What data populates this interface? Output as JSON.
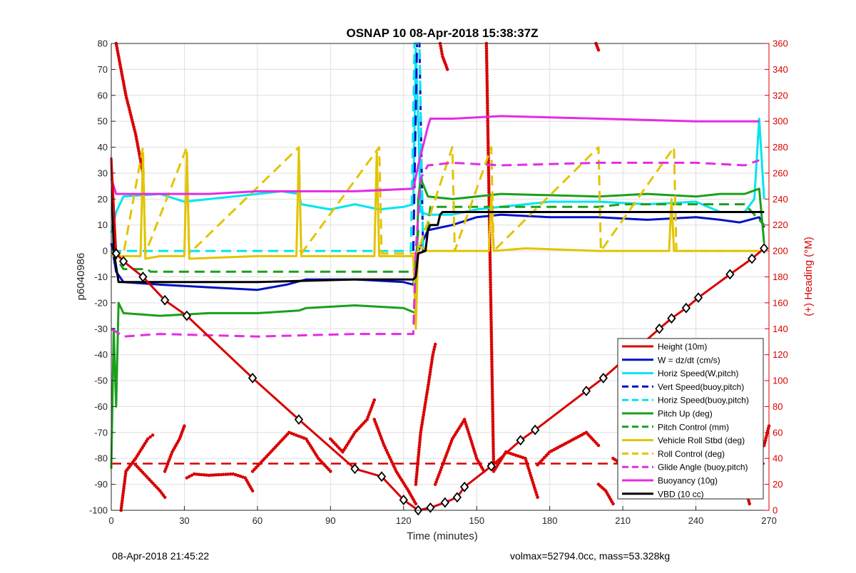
{
  "chart_data": {
    "type": "line",
    "title": "OSNAP 10 08-Apr-2018 15:38:37Z",
    "xlabel": "Time (minutes)",
    "ylabel_left": "p6040986",
    "ylabel_right": "(+) Heading (°M)",
    "xlim": [
      0,
      270
    ],
    "ylim_left": [
      -100,
      80
    ],
    "ylim_right": [
      0,
      360
    ],
    "x_ticks": [
      "0",
      "30",
      "60",
      "90",
      "120",
      "150",
      "180",
      "210",
      "240",
      "270"
    ],
    "y_ticks_left": [
      "80",
      "70",
      "60",
      "50",
      "40",
      "30",
      "20",
      "10",
      "0",
      "-10",
      "-20",
      "-30",
      "-40",
      "-50",
      "-60",
      "-70",
      "-80",
      "-90",
      "-100"
    ],
    "y_ticks_right": [
      "360",
      "340",
      "320",
      "300",
      "280",
      "260",
      "240",
      "220",
      "200",
      "180",
      "160",
      "140",
      "120",
      "100",
      "80",
      "60",
      "40",
      "20",
      "0"
    ],
    "grid": true,
    "legend_position": "bottom-right",
    "series": [
      {
        "name": "Height (10m)",
        "color": "#d90000",
        "dash": "solid",
        "marker": "diamond",
        "x": [
          0,
          2,
          5,
          13,
          22,
          31,
          58,
          77,
          100,
          111,
          120,
          126,
          131,
          137,
          142,
          145,
          156,
          168,
          174,
          195,
          202,
          225,
          230,
          236,
          241,
          254,
          263,
          268
        ],
        "y": [
          36,
          -1,
          -4,
          -10,
          -19,
          -25,
          -49,
          -65,
          -84,
          -87,
          -96,
          -100,
          -99,
          -97,
          -95,
          -91,
          -83,
          -73,
          -69,
          -54,
          -49,
          -30,
          -26,
          -22,
          -18,
          -9,
          -3,
          1
        ]
      },
      {
        "name": "W = dz/dt (cm/s)",
        "color": "#0010c8",
        "dash": "solid",
        "marker": "none",
        "x": [
          0,
          2,
          5,
          20,
          40,
          60,
          72,
          80,
          100,
          120,
          124,
          126,
          130,
          140,
          150,
          160,
          180,
          200,
          220,
          240,
          250,
          258,
          266,
          268
        ],
        "y": [
          3,
          -8,
          -12,
          -13,
          -14,
          -15,
          -13,
          -11,
          -11,
          -12,
          -13,
          0,
          8,
          10,
          13,
          14,
          13,
          13,
          12,
          13,
          12,
          11,
          13,
          9
        ]
      },
      {
        "name": "Horiz Speed(W,pitch)",
        "color": "#00e5ef",
        "dash": "solid",
        "marker": "none",
        "x": [
          0,
          2,
          5,
          20,
          30,
          60,
          70,
          77,
          78,
          90,
          100,
          110,
          120,
          124,
          125,
          126,
          127,
          130,
          140,
          150,
          160,
          180,
          200,
          220,
          240,
          245,
          250,
          260,
          264,
          266,
          268
        ],
        "y": [
          7,
          15,
          21,
          22,
          19,
          22,
          23,
          22,
          18,
          16,
          18,
          16,
          17,
          18,
          78,
          50,
          15,
          14,
          14,
          16,
          17,
          19,
          19,
          18,
          19,
          17,
          15,
          15,
          20,
          51,
          20
        ]
      },
      {
        "name": "Vert Speed(buoy,pitch)",
        "color": "#0010c8",
        "dash": "dashed",
        "marker": "none",
        "x": [
          124,
          125.5,
          126.5,
          128
        ],
        "y": [
          0,
          80,
          80,
          0
        ]
      },
      {
        "name": "Horiz Speed(buoy,pitch)",
        "color": "#00e5ef",
        "dash": "dashed",
        "marker": "none",
        "x": [
          0,
          123,
          124.5,
          126.5,
          128
        ],
        "y": [
          0,
          0,
          80,
          80,
          0
        ]
      },
      {
        "name": "Pitch Up (deg)",
        "color": "#1aa01a",
        "dash": "solid",
        "marker": "none",
        "x": [
          0,
          1,
          2,
          3,
          5,
          20,
          40,
          60,
          77,
          80,
          100,
          120,
          125,
          126,
          127,
          130,
          140,
          150,
          160,
          200,
          220,
          240,
          250,
          260,
          266,
          268
        ],
        "y": [
          -84,
          -30,
          -60,
          -20,
          -24,
          -25,
          -24,
          -24,
          -23,
          -22,
          -21,
          -22,
          -24,
          20,
          28,
          21,
          20,
          21,
          22,
          21,
          22,
          21,
          22,
          22,
          24,
          3
        ]
      },
      {
        "name": "Pitch Control (mm)",
        "color": "#1aa01a",
        "dash": "dashed",
        "marker": "none",
        "x": [
          0,
          5,
          15,
          16,
          30,
          31,
          60,
          61,
          124,
          125,
          126,
          128,
          130,
          131,
          145,
          146,
          200,
          210,
          260,
          268
        ],
        "y": [
          0,
          -7,
          -7,
          -8,
          -8,
          -8,
          -8,
          -8,
          -8,
          -4,
          8,
          8,
          9,
          17,
          17,
          17,
          17,
          18,
          18,
          10
        ]
      },
      {
        "name": "Vehicle Roll Stbd (deg)",
        "color": "#e2c400",
        "dash": "solid",
        "marker": "none",
        "x": [
          0,
          5,
          12,
          13,
          14,
          20,
          30,
          31,
          32,
          60,
          76,
          77,
          78,
          100,
          108,
          109,
          110,
          120,
          124,
          125,
          126,
          130,
          140,
          150,
          155,
          156,
          157,
          170,
          200,
          229,
          230,
          231,
          240,
          260,
          266
        ],
        "y": [
          -2,
          -2,
          -2,
          37,
          -3,
          -2,
          -2,
          37,
          -3,
          -2,
          -2,
          38,
          -2,
          -2,
          -2,
          38,
          -2,
          -2,
          -2,
          -30,
          2,
          0,
          0,
          0,
          0,
          21,
          0,
          1,
          0,
          0,
          20,
          0,
          0,
          0,
          0
        ]
      },
      {
        "name": "Roll Control (deg)",
        "color": "#e2c400",
        "dash": "dashed",
        "marker": "none",
        "x": [
          0,
          5,
          13,
          14,
          31,
          32,
          77,
          78,
          110,
          111,
          125,
          126,
          140,
          141,
          156,
          157,
          200,
          201,
          231,
          232,
          265
        ],
        "y": [
          0,
          -1,
          40,
          -1,
          40,
          -1,
          40,
          -1,
          40,
          -1,
          -1,
          0,
          40,
          0,
          40,
          0,
          40,
          0,
          40,
          0,
          0
        ]
      },
      {
        "name": "Glide Angle (buoy,pitch)",
        "color": "#e32ce3",
        "dash": "dashed",
        "marker": "none",
        "x": [
          0,
          5,
          20,
          60,
          100,
          120,
          124,
          125,
          127,
          130,
          140,
          160,
          200,
          240,
          260,
          266
        ],
        "y": [
          -30,
          -33,
          -32,
          -33,
          -32,
          -32,
          -32,
          0,
          28,
          33,
          34,
          33,
          34,
          34,
          33,
          35
        ]
      },
      {
        "name": "Buoyancy (10g)",
        "color": "#e32ce3",
        "dash": "solid",
        "marker": "none",
        "x": [
          0,
          2,
          20,
          40,
          60,
          80,
          100,
          124,
          126,
          130,
          131,
          140,
          160,
          200,
          240,
          266
        ],
        "y": [
          28,
          22,
          22,
          22,
          23,
          23,
          23,
          24,
          33,
          48,
          51,
          51,
          52,
          51,
          50,
          50
        ]
      },
      {
        "name": "VBD (10 cc)",
        "color": "#000000",
        "dash": "solid",
        "marker": "none",
        "x": [
          0,
          1,
          3,
          5,
          20,
          60,
          100,
          120,
          124,
          125,
          126,
          129,
          130,
          131,
          134,
          135,
          136,
          150,
          200,
          266,
          268
        ],
        "y": [
          36,
          0,
          -12,
          -12,
          -12,
          -12,
          -11,
          -11,
          -11,
          -10,
          -1,
          0,
          8,
          10,
          10,
          14,
          15,
          15,
          15,
          15,
          15
        ]
      }
    ],
    "heading": {
      "name": "Heading",
      "color": "#d90000",
      "axis": "right",
      "marker": "dot",
      "segments": [
        {
          "x": [
            2,
            4,
            6,
            10,
            13
          ],
          "y": [
            360,
            340,
            320,
            290,
            260
          ]
        },
        {
          "x": [
            4,
            6,
            10,
            15,
            17
          ],
          "y": [
            0,
            30,
            40,
            55,
            58
          ]
        },
        {
          "x": [
            10,
            15,
            20,
            22
          ],
          "y": [
            35,
            25,
            15,
            10
          ]
        },
        {
          "x": [
            22,
            25,
            28,
            30
          ],
          "y": [
            30,
            45,
            55,
            65
          ]
        },
        {
          "x": [
            31,
            34,
            40,
            50,
            55,
            58
          ],
          "y": [
            25,
            28,
            27,
            28,
            25,
            15
          ]
        },
        {
          "x": [
            58,
            63,
            68,
            73,
            80,
            85,
            90
          ],
          "y": [
            30,
            40,
            50,
            60,
            55,
            40,
            30
          ]
        },
        {
          "x": [
            90,
            95,
            100,
            105,
            108
          ],
          "y": [
            55,
            45,
            60,
            70,
            85
          ]
        },
        {
          "x": [
            108,
            112,
            117,
            122,
            125
          ],
          "y": [
            70,
            50,
            30,
            15,
            5
          ]
        },
        {
          "x": [
            125,
            127,
            130,
            132,
            133
          ],
          "y": [
            20,
            60,
            95,
            120,
            128
          ]
        },
        {
          "x": [
            133,
            136,
            140,
            145,
            150,
            153
          ],
          "y": [
            20,
            35,
            55,
            70,
            40,
            30
          ]
        },
        {
          "x": [
            135,
            136,
            137,
            138
          ],
          "y": [
            360,
            350,
            345,
            340
          ]
        },
        {
          "x": [
            154,
            157,
            162,
            170,
            175
          ],
          "y": [
            360,
            30,
            45,
            40,
            10
          ]
        },
        {
          "x": [
            175,
            180,
            185,
            190,
            195,
            200
          ],
          "y": [
            35,
            45,
            50,
            55,
            60,
            50
          ]
        },
        {
          "x": [
            200,
            203,
            206
          ],
          "y": [
            20,
            15,
            5
          ]
        },
        {
          "x": [
            199,
            200
          ],
          "y": [
            360,
            355
          ]
        },
        {
          "x": [
            206,
            210,
            215,
            222,
            228,
            235
          ],
          "y": [
            40,
            35,
            50,
            40,
            25,
            15
          ]
        },
        {
          "x": [
            235,
            240,
            245,
            250,
            258,
            262
          ],
          "y": [
            45,
            40,
            30,
            25,
            35,
            5
          ]
        },
        {
          "x": [
            262,
            265,
            268,
            270
          ],
          "y": [
            40,
            45,
            50,
            65
          ]
        }
      ]
    },
    "reference_line": {
      "axis": "right",
      "y": 36,
      "color": "#d90000",
      "dash": "dashed"
    }
  },
  "footer": {
    "timestamp": "08-Apr-2018 21:45:22",
    "info": "volmax=52794.0cc, mass=53.328kg"
  }
}
